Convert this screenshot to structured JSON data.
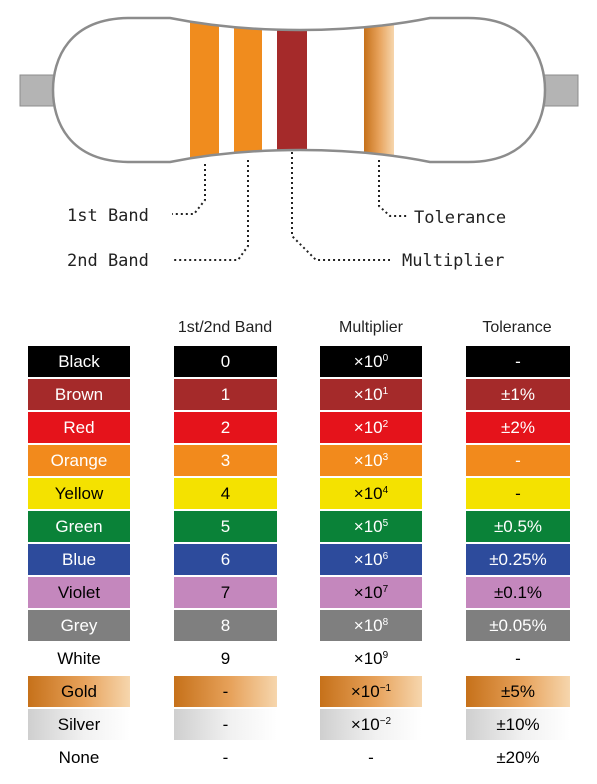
{
  "colors": {
    "band_orange": "#f08c1e",
    "band_red": "#a52a2a",
    "lead": "#b4b4b4",
    "outline": "#8c8c8c"
  },
  "labels": {
    "first_band": "1st Band",
    "second_band": "2nd Band",
    "multiplier": "Multiplier",
    "tolerance": "Tolerance"
  },
  "table": {
    "headers": [
      "1st/2nd Band",
      "Multiplier",
      "Tolerance"
    ],
    "rows": [
      {
        "name": "Black",
        "bg": "#000000",
        "fg": "#ffffff",
        "digit": "0",
        "mult_base": "×10",
        "mult_exp": "0",
        "tol": "-"
      },
      {
        "name": "Brown",
        "bg": "#a52a2a",
        "fg": "#ffffff",
        "digit": "1",
        "mult_base": "×10",
        "mult_exp": "1",
        "tol": "±1%"
      },
      {
        "name": "Red",
        "bg": "#e5131b",
        "fg": "#ffffff",
        "digit": "2",
        "mult_base": "×10",
        "mult_exp": "2",
        "tol": "±2%"
      },
      {
        "name": "Orange",
        "bg": "#f28a1c",
        "fg": "#ffffff",
        "digit": "3",
        "mult_base": "×10",
        "mult_exp": "3",
        "tol": "-"
      },
      {
        "name": "Yellow",
        "bg": "#f4e200",
        "fg": "#000000",
        "digit": "4",
        "mult_base": "×10",
        "mult_exp": "4",
        "tol": "-"
      },
      {
        "name": "Green",
        "bg": "#0a8238",
        "fg": "#ffffff",
        "digit": "5",
        "mult_base": "×10",
        "mult_exp": "5",
        "tol": "±0.5%"
      },
      {
        "name": "Blue",
        "bg": "#2d4b9c",
        "fg": "#ffffff",
        "digit": "6",
        "mult_base": "×10",
        "mult_exp": "6",
        "tol": "±0.25%"
      },
      {
        "name": "Violet",
        "bg": "#c487bd",
        "fg": "#000000",
        "digit": "7",
        "mult_base": "×10",
        "mult_exp": "7",
        "tol": "±0.1%"
      },
      {
        "name": "Grey",
        "bg": "#7f7f7f",
        "fg": "#ffffff",
        "digit": "8",
        "mult_base": "×10",
        "mult_exp": "8",
        "tol": "±0.05%"
      },
      {
        "name": "White",
        "bg": "#ffffff",
        "fg": "#000000",
        "digit": "9",
        "mult_base": "×10",
        "mult_exp": "9",
        "tol": "-"
      },
      {
        "name": "Gold",
        "bg": "linear-gradient(90deg, #c6711a 0%, #e7a25b 55%, #f6d6ad 100%)",
        "fg": "#000000",
        "digit": "-",
        "mult_base": "×10",
        "mult_exp": "-1",
        "tol": "±5%"
      },
      {
        "name": "Silver",
        "bg": "linear-gradient(90deg, #cfcfcf 0%, #f1f1f1 55%, #ffffff 100%)",
        "fg": "#000000",
        "digit": "-",
        "mult_base": "×10",
        "mult_exp": "-2",
        "tol": "±10%"
      },
      {
        "name": "None",
        "bg": "#ffffff",
        "fg": "#000000",
        "digit": "-",
        "mult_base": "-",
        "mult_exp": "",
        "tol": "±20%"
      }
    ]
  }
}
